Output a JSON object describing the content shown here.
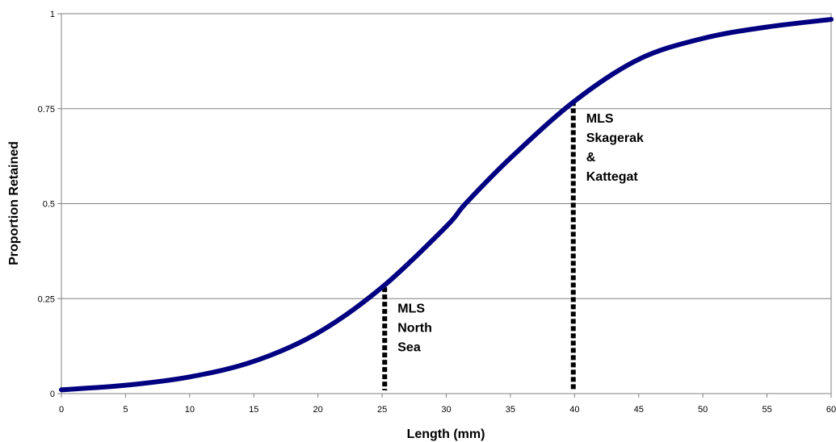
{
  "chart_data": {
    "type": "line",
    "title": "",
    "xlabel": "Length (mm)",
    "ylabel": "Proportion Retained",
    "xlim": [
      0,
      60
    ],
    "ylim": [
      0,
      1
    ],
    "x_ticks": [
      "0",
      "5",
      "10",
      "15",
      "20",
      "25",
      "30",
      "35",
      "40",
      "45",
      "50",
      "55",
      "60"
    ],
    "y_ticks": [
      "0",
      "0.25",
      "0.5",
      "0.75",
      "1"
    ],
    "grid": "horizontal",
    "legend": "none",
    "series": [
      {
        "color": "#000080",
        "x": [
          0,
          5,
          10,
          15,
          20,
          25,
          30,
          31.5,
          35,
          40,
          45,
          50,
          55,
          60
        ],
        "y": [
          0.01,
          0.022,
          0.044,
          0.085,
          0.16,
          0.28,
          0.44,
          0.5,
          0.62,
          0.77,
          0.88,
          0.935,
          0.965,
          0.985
        ]
      }
    ],
    "annotations": [
      {
        "x": 25.2,
        "y": 0.28,
        "lines": [
          "MLS",
          "North",
          "Sea"
        ],
        "text_y": 0.25
      },
      {
        "x": 39.9,
        "y": 0.77,
        "lines": [
          "MLS",
          "Skagerak",
          "&",
          "Kattegat"
        ],
        "text_y": 0.75
      }
    ]
  },
  "colors": {
    "curve": "#000080",
    "gridline": "#808080",
    "plot_border": "#808080",
    "dotted_line": "#000000"
  }
}
